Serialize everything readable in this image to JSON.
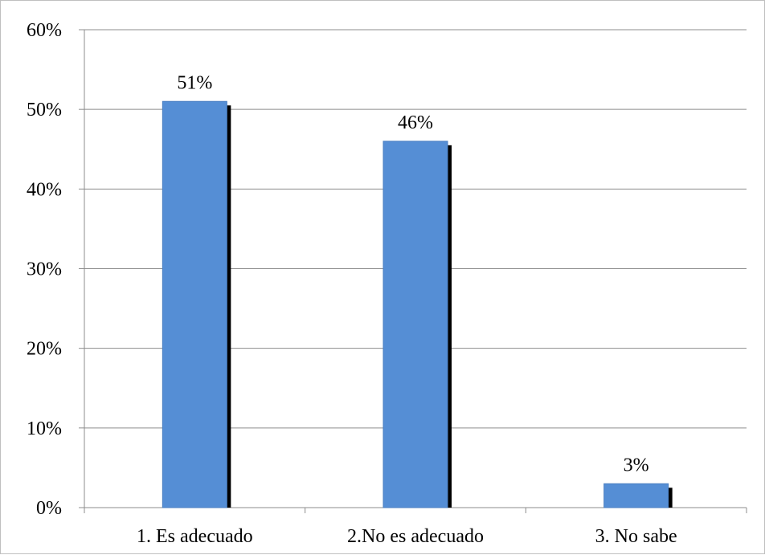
{
  "chart_data": {
    "type": "bar",
    "categories": [
      "1. Es adecuado",
      "2.No es adecuado",
      "3. No sabe"
    ],
    "values": [
      0.51,
      0.46,
      0.03
    ],
    "data_labels": [
      "51%",
      "46%",
      "3%"
    ],
    "title": "",
    "xlabel": "",
    "ylabel": "",
    "ylim": [
      0,
      0.6
    ],
    "yticks": [
      0,
      0.1,
      0.2,
      0.3,
      0.4,
      0.5,
      0.6
    ],
    "ytick_labels": [
      "0%",
      "10%",
      "20%",
      "30%",
      "40%",
      "50%",
      "60%"
    ],
    "grid": true,
    "legend": "none",
    "bar_color": "#558ed5",
    "shadow_color": "#000000",
    "gridline_color": "#8c8c8c"
  }
}
